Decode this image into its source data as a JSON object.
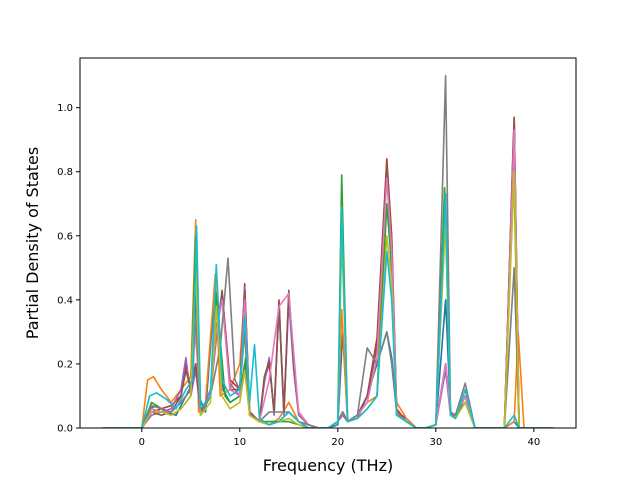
{
  "chart_data": {
    "type": "line",
    "xlabel": "Frequency (THz)",
    "ylabel": "Partial Density of States",
    "xlim": [
      -6.3,
      44.3
    ],
    "ylim": [
      0.0,
      1.155
    ],
    "x_ticks": [
      0,
      10,
      20,
      30,
      40
    ],
    "y_ticks": [
      0.0,
      0.2,
      0.4,
      0.6,
      0.8,
      1.0
    ],
    "x_tick_labels": [
      "0",
      "10",
      "20",
      "30",
      "40"
    ],
    "y_tick_labels": [
      "0.0",
      "0.2",
      "0.4",
      "0.6",
      "0.8",
      "1.0"
    ],
    "grid": false,
    "legend": "none",
    "series": [
      {
        "color": "#1f77b4",
        "x": [
          -4,
          0,
          0.8,
          1.5,
          2.5,
          3.5,
          4.5,
          5.2,
          5.5,
          5.8,
          6.5,
          7.5,
          8.3,
          9,
          10,
          10.5,
          11,
          12,
          13,
          14,
          15,
          16,
          17,
          18,
          19,
          20,
          20.5,
          21,
          22,
          23,
          24,
          25,
          25.5,
          26,
          27,
          28,
          29,
          30,
          31,
          31.5,
          32,
          33,
          34,
          35,
          36,
          37,
          38,
          38.5,
          39,
          42
        ],
        "y": [
          0,
          0,
          0.06,
          0.07,
          0.05,
          0.04,
          0.1,
          0.14,
          0.42,
          0.1,
          0.05,
          0.45,
          0.12,
          0.08,
          0.1,
          0.2,
          0.05,
          0.02,
          0.01,
          0.02,
          0.05,
          0.02,
          0.01,
          0.0,
          0.0,
          0.01,
          0.3,
          0.02,
          0.03,
          0.1,
          0.2,
          0.3,
          0.22,
          0.05,
          0.03,
          0.0,
          0.0,
          0.01,
          0.4,
          0.05,
          0.04,
          0.08,
          0.0,
          0.0,
          0.0,
          0.0,
          0.02,
          0.0,
          0.0,
          0.0
        ]
      },
      {
        "color": "#ff7f0e",
        "x": [
          -4,
          0,
          0.6,
          1.2,
          2,
          3,
          4.5,
          5,
          5.5,
          5.8,
          6.5,
          7.5,
          8,
          9,
          10,
          10.5,
          11,
          12,
          13,
          14,
          15,
          16,
          17,
          18,
          19,
          20,
          20.4,
          21,
          22,
          23,
          24,
          25,
          25.4,
          26,
          27,
          28,
          29,
          30,
          31,
          31.5,
          32,
          33,
          34,
          35,
          36,
          37,
          38,
          38.4,
          39,
          42
        ],
        "y": [
          0,
          0,
          0.15,
          0.16,
          0.12,
          0.08,
          0.14,
          0.16,
          0.65,
          0.05,
          0.08,
          0.48,
          0.1,
          0.12,
          0.2,
          0.42,
          0.05,
          0.02,
          0.01,
          0.03,
          0.08,
          0.02,
          0.0,
          0.0,
          0.0,
          0.02,
          0.37,
          0.02,
          0.04,
          0.08,
          0.1,
          0.82,
          0.55,
          0.08,
          0.03,
          0.0,
          0.0,
          0.01,
          0.72,
          0.05,
          0.03,
          0.12,
          0.0,
          0.0,
          0.0,
          0.0,
          0.02,
          0.3,
          0.0,
          0.0
        ]
      },
      {
        "color": "#2ca02c",
        "x": [
          -4,
          0,
          1,
          2,
          3,
          4,
          5,
          5.5,
          6,
          7,
          7.6,
          8.5,
          9,
          10,
          10.6,
          11,
          12,
          14,
          15,
          16,
          17,
          18,
          19,
          20,
          20.4,
          21,
          22,
          23,
          24,
          25,
          25.5,
          26,
          27,
          28,
          29,
          30,
          30.9,
          31.5,
          32,
          33,
          34,
          35,
          36,
          37,
          37.9,
          38.5,
          39,
          42
        ],
        "y": [
          0,
          0,
          0.08,
          0.06,
          0.04,
          0.06,
          0.1,
          0.6,
          0.05,
          0.1,
          0.42,
          0.1,
          0.08,
          0.1,
          0.22,
          0.05,
          0.02,
          0.02,
          0.02,
          0.01,
          0.0,
          0.0,
          0.0,
          0.02,
          0.79,
          0.02,
          0.03,
          0.06,
          0.1,
          0.7,
          0.5,
          0.04,
          0.02,
          0.0,
          0.0,
          0.01,
          0.75,
          0.04,
          0.03,
          0.1,
          0.0,
          0.0,
          0.0,
          0.0,
          0.9,
          0.0,
          0.0,
          0.0
        ]
      },
      {
        "color": "#d62728",
        "x": [
          -4,
          0,
          1,
          2,
          3,
          4,
          4.5,
          5,
          5.5,
          6,
          7,
          7.6,
          8.2,
          9,
          10,
          10.5,
          11,
          12,
          12.5,
          13,
          13.5,
          14,
          14.5,
          15,
          15.5,
          16,
          17,
          18,
          19,
          20,
          20.5,
          21,
          22,
          23,
          24,
          25,
          25.5,
          26,
          27,
          28,
          29,
          30,
          31,
          31.5,
          32,
          33,
          34,
          35,
          36,
          37,
          38,
          38.5,
          39,
          42
        ],
        "y": [
          0,
          0,
          0.05,
          0.06,
          0.07,
          0.1,
          0.2,
          0.12,
          0.2,
          0.05,
          0.1,
          0.3,
          0.42,
          0.15,
          0.12,
          0.45,
          0.05,
          0.02,
          0.15,
          0.2,
          0.05,
          0.4,
          0.05,
          0.42,
          0.2,
          0.05,
          0.01,
          0.0,
          0.0,
          0.02,
          0.05,
          0.02,
          0.04,
          0.1,
          0.28,
          0.84,
          0.6,
          0.06,
          0.02,
          0.0,
          0.0,
          0.01,
          0.2,
          0.05,
          0.04,
          0.1,
          0.0,
          0.0,
          0.0,
          0.0,
          0.97,
          0.0,
          0.0,
          0.0
        ]
      },
      {
        "color": "#9467bd",
        "x": [
          -4,
          0,
          1,
          2,
          3,
          4,
          4.5,
          5,
          5.5,
          6,
          7,
          7.6,
          8.2,
          9,
          10,
          10.5,
          11,
          12,
          12.5,
          13,
          13.5,
          14,
          14.5,
          15,
          15.5,
          16,
          17,
          18,
          19,
          20,
          20.5,
          21,
          22,
          23,
          24,
          25,
          25.5,
          26,
          27,
          28,
          29,
          30,
          31,
          31.5,
          32,
          33,
          34,
          35,
          36,
          37,
          38,
          38.5,
          39,
          42
        ],
        "y": [
          0,
          0,
          0.04,
          0.05,
          0.06,
          0.12,
          0.22,
          0.1,
          0.18,
          0.04,
          0.12,
          0.32,
          0.4,
          0.14,
          0.1,
          0.44,
          0.04,
          0.02,
          0.14,
          0.22,
          0.04,
          0.38,
          0.04,
          0.4,
          0.18,
          0.04,
          0.01,
          0.0,
          0.0,
          0.02,
          0.04,
          0.02,
          0.03,
          0.1,
          0.25,
          0.8,
          0.58,
          0.05,
          0.02,
          0.0,
          0.0,
          0.01,
          0.18,
          0.04,
          0.04,
          0.1,
          0.0,
          0.0,
          0.0,
          0.0,
          0.95,
          0.0,
          0.0,
          0.0
        ]
      },
      {
        "color": "#8c564b",
        "x": [
          -4,
          0,
          1,
          2,
          3,
          4,
          4.5,
          5,
          5.5,
          6,
          7,
          7.6,
          8.2,
          9,
          10,
          10.5,
          11,
          12,
          12.5,
          13,
          13.5,
          14,
          14.5,
          15,
          15.5,
          16,
          17,
          18,
          19,
          20,
          20.5,
          21,
          22,
          23,
          24,
          25,
          25.5,
          26,
          27,
          28,
          29,
          30,
          31,
          31.5,
          32,
          33,
          34,
          35,
          36,
          37,
          38,
          38.5,
          39,
          42
        ],
        "y": [
          0,
          0,
          0.05,
          0.04,
          0.05,
          0.1,
          0.18,
          0.12,
          0.2,
          0.05,
          0.1,
          0.28,
          0.43,
          0.12,
          0.12,
          0.43,
          0.05,
          0.02,
          0.16,
          0.21,
          0.05,
          0.39,
          0.05,
          0.43,
          0.2,
          0.05,
          0.01,
          0.0,
          0.0,
          0.02,
          0.05,
          0.02,
          0.04,
          0.1,
          0.26,
          0.83,
          0.59,
          0.05,
          0.02,
          0.0,
          0.0,
          0.01,
          0.2,
          0.05,
          0.04,
          0.1,
          0.0,
          0.0,
          0.0,
          0.0,
          0.97,
          0.0,
          0.0,
          0.0
        ]
      },
      {
        "color": "#e377c2",
        "x": [
          -4,
          0,
          1,
          2,
          3,
          4,
          5,
          5.5,
          6,
          7,
          7.6,
          8.2,
          9,
          10,
          10.5,
          11,
          12,
          13,
          14,
          15,
          16,
          17,
          18,
          19,
          20,
          20.5,
          21,
          22,
          23,
          24,
          25,
          25.5,
          26,
          27,
          28,
          29,
          30,
          31,
          31.5,
          32,
          33,
          34,
          35,
          36,
          37,
          38,
          38.5,
          39,
          42
        ],
        "y": [
          0,
          0,
          0.06,
          0.05,
          0.05,
          0.08,
          0.12,
          0.3,
          0.04,
          0.1,
          0.3,
          0.4,
          0.12,
          0.1,
          0.4,
          0.04,
          0.02,
          0.15,
          0.38,
          0.42,
          0.05,
          0.01,
          0.0,
          0.0,
          0.02,
          0.05,
          0.02,
          0.04,
          0.08,
          0.22,
          0.78,
          0.55,
          0.05,
          0.02,
          0.0,
          0.0,
          0.01,
          0.2,
          0.05,
          0.04,
          0.1,
          0.0,
          0.0,
          0.0,
          0.0,
          0.93,
          0.0,
          0.0,
          0.0
        ]
      },
      {
        "color": "#7f7f7f",
        "x": [
          -4,
          0,
          1,
          2,
          3,
          4,
          5,
          5.5,
          6,
          7,
          8,
          8.8,
          9.5,
          10,
          10.5,
          11,
          12,
          13,
          14,
          15,
          16,
          17,
          18,
          19,
          20,
          20.5,
          21,
          22,
          23,
          24,
          25,
          25.5,
          26,
          27,
          28,
          29,
          30,
          31,
          31.5,
          32,
          33,
          34,
          35,
          36,
          37,
          38,
          38.5,
          39,
          42
        ],
        "y": [
          0,
          0,
          0.07,
          0.06,
          0.05,
          0.08,
          0.12,
          0.35,
          0.04,
          0.1,
          0.25,
          0.53,
          0.15,
          0.12,
          0.3,
          0.04,
          0.02,
          0.05,
          0.05,
          0.05,
          0.02,
          0.01,
          0.0,
          0.0,
          0.02,
          0.05,
          0.02,
          0.04,
          0.25,
          0.2,
          0.3,
          0.2,
          0.05,
          0.02,
          0.0,
          0.0,
          0.01,
          1.1,
          0.05,
          0.04,
          0.14,
          0.0,
          0.0,
          0.0,
          0.0,
          0.5,
          0.0,
          0.0,
          0.0
        ]
      },
      {
        "color": "#bcbd22",
        "x": [
          -4,
          0,
          1,
          2,
          3,
          4,
          5,
          5.5,
          6,
          7,
          7.6,
          8.2,
          9,
          10,
          10.5,
          11,
          12,
          13,
          14,
          15,
          16,
          17,
          18,
          19,
          20,
          20.4,
          21,
          22,
          23,
          24,
          25,
          25.5,
          26,
          27,
          28,
          29,
          30,
          31,
          31.5,
          32,
          33,
          34,
          35,
          36,
          37,
          38,
          38.5,
          39,
          42
        ],
        "y": [
          0,
          0,
          0.05,
          0.05,
          0.04,
          0.06,
          0.1,
          0.5,
          0.04,
          0.08,
          0.38,
          0.1,
          0.06,
          0.08,
          0.18,
          0.04,
          0.02,
          0.01,
          0.02,
          0.03,
          0.01,
          0.0,
          0.0,
          0.0,
          0.02,
          0.6,
          0.02,
          0.03,
          0.06,
          0.1,
          0.6,
          0.45,
          0.04,
          0.02,
          0.0,
          0.0,
          0.01,
          0.65,
          0.04,
          0.03,
          0.08,
          0.0,
          0.0,
          0.0,
          0.0,
          0.8,
          0.0,
          0.0,
          0.0
        ]
      },
      {
        "color": "#17becf",
        "x": [
          -4,
          0,
          0.8,
          1.5,
          2.5,
          3.5,
          4.5,
          5.2,
          5.6,
          6,
          7,
          7.6,
          8.2,
          9,
          10,
          10.5,
          11,
          11.5,
          12,
          13,
          14,
          15,
          16,
          17,
          18,
          19,
          20,
          20.4,
          21,
          22,
          23,
          24,
          25,
          25.5,
          26,
          27,
          28,
          29,
          30,
          31,
          31.5,
          32,
          33,
          34,
          35,
          36,
          37,
          38,
          38.5,
          39,
          42
        ],
        "y": [
          0,
          0,
          0.1,
          0.11,
          0.09,
          0.06,
          0.12,
          0.15,
          0.63,
          0.06,
          0.1,
          0.51,
          0.15,
          0.1,
          0.12,
          0.35,
          0.08,
          0.26,
          0.03,
          0.01,
          0.02,
          0.05,
          0.02,
          0.0,
          0.0,
          0.0,
          0.02,
          0.69,
          0.02,
          0.03,
          0.06,
          0.1,
          0.55,
          0.4,
          0.04,
          0.02,
          0.0,
          0.0,
          0.01,
          0.73,
          0.04,
          0.03,
          0.12,
          0.0,
          0.0,
          0.0,
          0.0,
          0.04,
          0.0,
          0.0,
          0.0
        ]
      }
    ]
  }
}
